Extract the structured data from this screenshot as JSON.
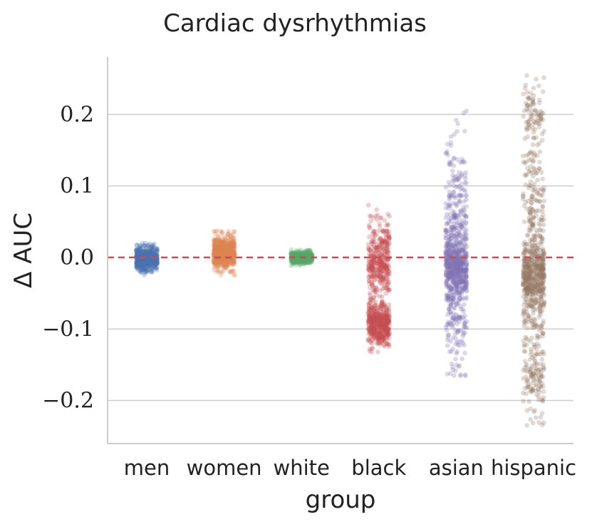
{
  "chart_data": {
    "type": "scatter",
    "subtype": "strip",
    "title": "Cardiac dysrhythmias",
    "xlabel": "group",
    "ylabel": "Δ AUC",
    "ylim": [
      -0.26,
      0.28
    ],
    "yticks": [
      -0.2,
      -0.1,
      0.0,
      0.1,
      0.2
    ],
    "ytick_labels": [
      "−0.2",
      "−0.1",
      "0.0",
      "0.1",
      "0.2"
    ],
    "grid": "horizontal",
    "reference_line": {
      "y": 0.0,
      "style": "dashed",
      "color": "#c44e52"
    },
    "categories": [
      "men",
      "women",
      "white",
      "black",
      "asian",
      "hispanic"
    ],
    "series": [
      {
        "name": "men",
        "color": "#4c72b0",
        "n": 700,
        "clusters": [
          {
            "weight": 1.0,
            "mean": -0.002,
            "sd": 0.008,
            "min": -0.026,
            "max": 0.02
          }
        ]
      },
      {
        "name": "women",
        "color": "#dd8452",
        "n": 700,
        "clusters": [
          {
            "weight": 1.0,
            "mean": 0.007,
            "sd": 0.011,
            "min": -0.025,
            "max": 0.037
          }
        ]
      },
      {
        "name": "white",
        "color": "#55a868",
        "n": 600,
        "clusters": [
          {
            "weight": 1.0,
            "mean": 0.0,
            "sd": 0.004,
            "min": -0.012,
            "max": 0.016
          }
        ]
      },
      {
        "name": "black",
        "color": "#c44e52",
        "n": 900,
        "clusters": [
          {
            "weight": 0.55,
            "mean": -0.093,
            "sd": 0.014,
            "min": -0.133,
            "max": -0.06
          },
          {
            "weight": 0.45,
            "mean": -0.005,
            "sd": 0.03,
            "min": -0.09,
            "max": 0.092
          }
        ]
      },
      {
        "name": "asian",
        "color": "#8172b3",
        "n": 900,
        "clusters": [
          {
            "weight": 0.4,
            "mean": -0.015,
            "sd": 0.018,
            "min": -0.06,
            "max": 0.04
          },
          {
            "weight": 0.6,
            "mean": 0.0,
            "sd": 0.075,
            "min": -0.166,
            "max": 0.205
          }
        ]
      },
      {
        "name": "hispanic",
        "color": "#937860",
        "n": 900,
        "clusters": [
          {
            "weight": 0.35,
            "mean": -0.025,
            "sd": 0.02,
            "min": -0.08,
            "max": 0.03
          },
          {
            "weight": 0.5,
            "mean": -0.01,
            "sd": 0.1,
            "min": -0.235,
            "max": 0.255
          },
          {
            "weight": 0.075,
            "mean": 0.2,
            "sd": 0.02,
            "min": 0.15,
            "max": 0.245
          },
          {
            "weight": 0.075,
            "mean": -0.17,
            "sd": 0.02,
            "min": -0.22,
            "max": -0.12
          }
        ]
      }
    ]
  }
}
